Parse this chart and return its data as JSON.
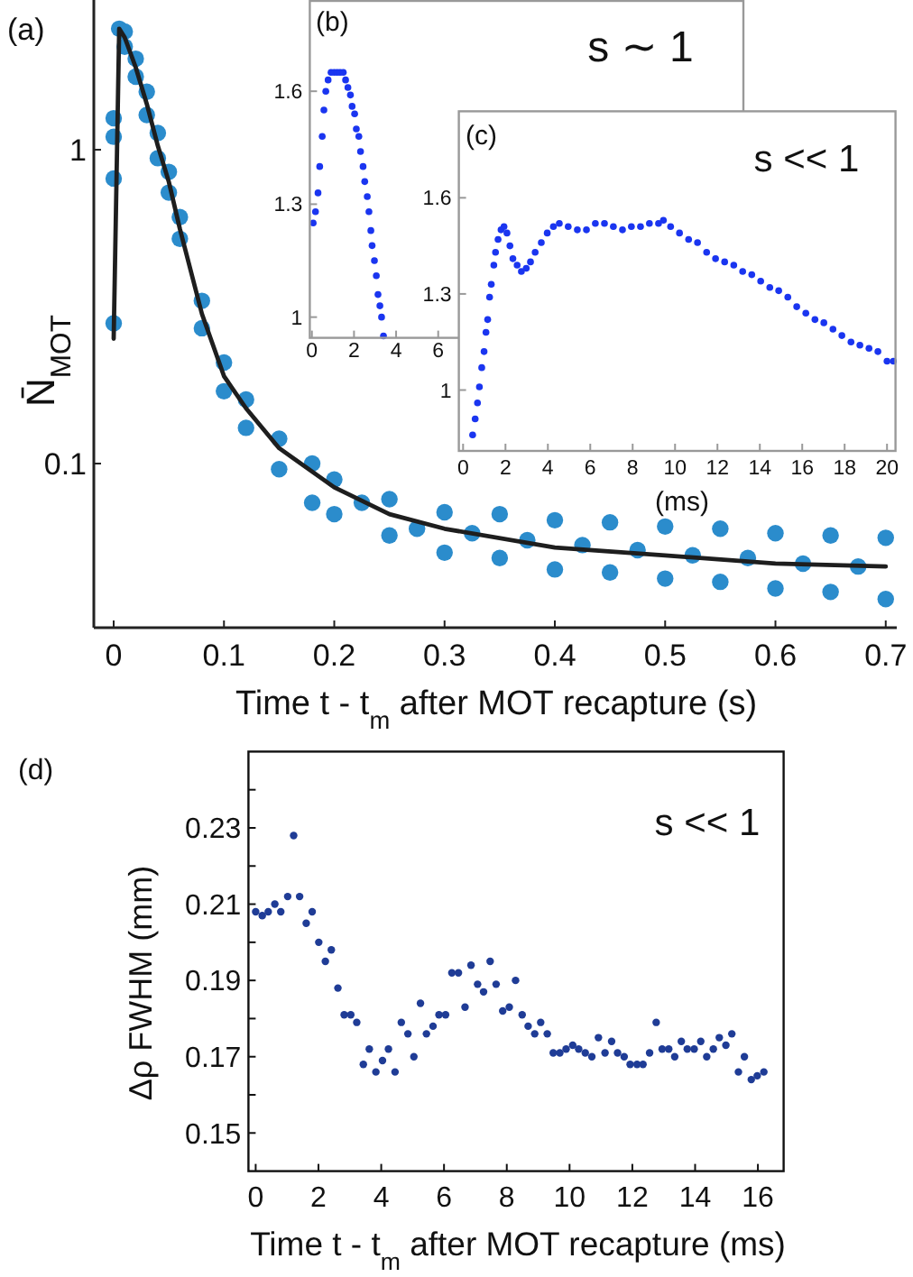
{
  "chart_data": [
    {
      "type": "scatter",
      "title": "(a)",
      "xlabel": "Time t - t$_{m}$ after MOT recapture (s)",
      "ylabel": "N̄$_{MOT}$",
      "xlim": [
        -0.018,
        0.71
      ],
      "ylim": [
        0.03,
        3
      ],
      "xticks": [
        0,
        0.1,
        0.2,
        0.3,
        0.4,
        0.5,
        0.6,
        0.7
      ],
      "yticks": [
        0.1,
        1
      ],
      "log": "y",
      "marker": "circle",
      "series": [
        {
          "color": "#2b8ccc",
          "x": [
            0,
            0,
            0,
            0,
            0.005,
            0.01,
            0.01,
            0.02,
            0.02,
            0.03,
            0.03,
            0.04,
            0.04,
            0.05,
            0.05,
            0.06,
            0.06,
            0.08,
            0.08,
            0.1,
            0.1,
            0.12,
            0.12,
            0.15,
            0.15,
            0.18,
            0.18,
            0.2,
            0.2,
            0.25,
            0.25,
            0.3,
            0.3,
            0.35,
            0.35,
            0.4,
            0.4,
            0.45,
            0.45,
            0.5,
            0.5,
            0.55,
            0.55,
            0.6,
            0.6,
            0.65,
            0.65,
            0.7,
            0.7,
            0.225,
            0.275,
            0.325,
            0.375,
            0.425,
            0.475,
            0.525,
            0.575,
            0.625,
            0.675
          ],
          "values": [
            0.28,
            0.81,
            1.1,
            1.26,
            2.43,
            2.38,
            2.13,
            1.95,
            1.71,
            1.53,
            1.29,
            1.13,
            0.94,
            0.85,
            0.73,
            0.61,
            0.52,
            0.33,
            0.27,
            0.21,
            0.17,
            0.16,
            0.13,
            0.12,
            0.096,
            0.1,
            0.075,
            0.089,
            0.069,
            0.077,
            0.059,
            0.07,
            0.052,
            0.069,
            0.05,
            0.066,
            0.046,
            0.065,
            0.045,
            0.063,
            0.043,
            0.062,
            0.042,
            0.06,
            0.04,
            0.059,
            0.039,
            0.058,
            0.037,
            0.075,
            0.062,
            0.06,
            0.057,
            0.055,
            0.053,
            0.051,
            0.05,
            0.048,
            0.047
          ]
        },
        {
          "type": "line",
          "color": "#1e1e1e",
          "line_style": "solid",
          "marker": "none",
          "x": [
            0,
            0.005,
            0.01,
            0.02,
            0.03,
            0.04,
            0.05,
            0.06,
            0.08,
            0.1,
            0.12,
            0.15,
            0.2,
            0.25,
            0.3,
            0.4,
            0.5,
            0.6,
            0.7
          ],
          "values": [
            0.25,
            2.43,
            2.28,
            1.83,
            1.4,
            1.03,
            0.79,
            0.56,
            0.3,
            0.19,
            0.15,
            0.112,
            0.084,
            0.069,
            0.062,
            0.054,
            0.051,
            0.048,
            0.047
          ]
        }
      ]
    },
    {
      "type": "scatter",
      "title": "(b)",
      "annotations": [
        "s ∼ 1"
      ],
      "xlim": [
        -0.1,
        20.5
      ],
      "ylim": [
        0.945,
        1.84
      ],
      "xticks": [
        0,
        2,
        4,
        6
      ],
      "yticks": [
        1,
        1.3,
        1.6
      ],
      "marker": "circle",
      "series": [
        {
          "color": "#1a35f0",
          "x": [
            0.06,
            0.17,
            0.29,
            0.37,
            0.49,
            0.57,
            0.66,
            0.77,
            0.91,
            1.06,
            1.2,
            1.34,
            1.49,
            1.6,
            1.71,
            1.83,
            1.91,
            2.03,
            2.11,
            2.23,
            2.31,
            2.43,
            2.51,
            2.63,
            2.71,
            2.8,
            2.86,
            2.97,
            3.06,
            3.14,
            3.23,
            3.31,
            3.4
          ],
          "values": [
            1.25,
            1.28,
            1.33,
            1.4,
            1.48,
            1.55,
            1.6,
            1.63,
            1.65,
            1.65,
            1.65,
            1.65,
            1.65,
            1.63,
            1.61,
            1.59,
            1.56,
            1.54,
            1.5,
            1.48,
            1.44,
            1.4,
            1.36,
            1.32,
            1.28,
            1.23,
            1.19,
            1.15,
            1.11,
            1.06,
            1.03,
            1.0,
            0.95
          ]
        }
      ]
    },
    {
      "type": "scatter",
      "title": "(c)",
      "xlabel": "(ms)",
      "annotations": [
        "s << 1"
      ],
      "xlim": [
        -0.2,
        20.4
      ],
      "ylim": [
        0.81,
        1.87
      ],
      "xticks": [
        0,
        2,
        4,
        6,
        8,
        10,
        12,
        14,
        16,
        18,
        20
      ],
      "yticks": [
        1,
        1.3,
        1.6
      ],
      "marker": "circle",
      "series": [
        {
          "color": "#1a35f0",
          "x": [
            0.45,
            0.57,
            0.68,
            0.77,
            0.88,
            0.99,
            1.08,
            1.16,
            1.25,
            1.33,
            1.45,
            1.53,
            1.65,
            1.79,
            1.93,
            2.07,
            2.21,
            2.35,
            2.55,
            2.75,
            2.98,
            3.18,
            3.4,
            3.69,
            3.97,
            4.26,
            4.54,
            4.96,
            5.39,
            5.82,
            6.24,
            6.67,
            7.09,
            7.52,
            7.94,
            8.37,
            8.79,
            9.22,
            9.45,
            9.79,
            10.21,
            10.64,
            11.06,
            11.49,
            11.91,
            12.34,
            12.77,
            13.19,
            13.62,
            14.04,
            14.47,
            14.89,
            15.32,
            15.74,
            16.17,
            16.6,
            17.02,
            17.45,
            17.87,
            18.3,
            18.72,
            19.15,
            19.57,
            20.0,
            20.3
          ],
          "values": [
            0.86,
            0.91,
            0.96,
            1.01,
            1.07,
            1.12,
            1.18,
            1.22,
            1.29,
            1.33,
            1.39,
            1.43,
            1.47,
            1.5,
            1.51,
            1.49,
            1.45,
            1.41,
            1.39,
            1.37,
            1.38,
            1.4,
            1.43,
            1.46,
            1.49,
            1.51,
            1.52,
            1.51,
            1.5,
            1.5,
            1.52,
            1.52,
            1.51,
            1.5,
            1.51,
            1.51,
            1.52,
            1.52,
            1.53,
            1.51,
            1.49,
            1.47,
            1.46,
            1.43,
            1.41,
            1.4,
            1.39,
            1.37,
            1.36,
            1.34,
            1.32,
            1.31,
            1.29,
            1.26,
            1.24,
            1.22,
            1.21,
            1.19,
            1.17,
            1.15,
            1.14,
            1.13,
            1.12,
            1.09,
            1.09
          ]
        }
      ]
    },
    {
      "type": "scatter",
      "title": "(d)",
      "xlabel": "Time t - t$_{m}$ after MOT recapture (ms)",
      "ylabel": "Δρ FWHM (mm)",
      "annotations": [
        "s << 1"
      ],
      "xlim": [
        -0.23,
        16.82
      ],
      "ylim": [
        0.14,
        0.25
      ],
      "xticks": [
        0,
        2,
        4,
        6,
        8,
        10,
        12,
        14,
        16
      ],
      "yticks": [
        0.15,
        {
          "value": 0.16,
          "label": null
        },
        0.17,
        {
          "value": 0.18,
          "label": null
        },
        0.19,
        {
          "value": 0.2,
          "label": null
        },
        0.21,
        {
          "value": 0.22,
          "label": null
        },
        0.23,
        {
          "value": 0.24,
          "label": null
        }
      ],
      "marker": "circle",
      "series": [
        {
          "color": "#1f3c96",
          "x": [
            0,
            0.21,
            0.4,
            0.61,
            0.8,
            1.02,
            1.21,
            1.4,
            1.61,
            1.8,
            2.01,
            2.22,
            2.41,
            2.62,
            2.82,
            3.03,
            3.22,
            3.43,
            3.62,
            3.83,
            4.04,
            4.23,
            4.44,
            4.64,
            4.85,
            5.04,
            5.25,
            5.44,
            5.65,
            5.84,
            6.05,
            6.25,
            6.46,
            6.67,
            6.86,
            7.07,
            7.26,
            7.47,
            7.66,
            7.87,
            8.08,
            8.28,
            8.49,
            8.68,
            8.89,
            9.08,
            9.29,
            9.48,
            9.69,
            9.89,
            10.1,
            10.29,
            10.5,
            10.71,
            10.92,
            11.13,
            11.34,
            11.53,
            11.74,
            11.93,
            12.15,
            12.34,
            12.55,
            12.76,
            12.95,
            13.16,
            13.35,
            13.56,
            13.75,
            13.97,
            14.18,
            14.37,
            14.58,
            14.77,
            14.98,
            15.17,
            15.38,
            15.57,
            15.79,
            15.98,
            16.19
          ],
          "values": [
            0.208,
            0.207,
            0.208,
            0.21,
            0.208,
            0.212,
            0.228,
            0.212,
            0.205,
            0.208,
            0.2,
            0.195,
            0.198,
            0.188,
            0.181,
            0.181,
            0.179,
            0.168,
            0.172,
            0.166,
            0.169,
            0.172,
            0.166,
            0.179,
            0.176,
            0.17,
            0.184,
            0.176,
            0.178,
            0.181,
            0.181,
            0.192,
            0.192,
            0.183,
            0.194,
            0.189,
            0.187,
            0.195,
            0.189,
            0.182,
            0.183,
            0.19,
            0.181,
            0.178,
            0.176,
            0.179,
            0.176,
            0.171,
            0.171,
            0.172,
            0.173,
            0.172,
            0.171,
            0.17,
            0.175,
            0.171,
            0.174,
            0.171,
            0.17,
            0.168,
            0.168,
            0.168,
            0.171,
            0.179,
            0.172,
            0.172,
            0.17,
            0.174,
            0.172,
            0.172,
            0.174,
            0.17,
            0.172,
            0.175,
            0.173,
            0.176,
            0.166,
            0.17,
            0.164,
            0.165,
            0.166
          ]
        }
      ]
    }
  ]
}
